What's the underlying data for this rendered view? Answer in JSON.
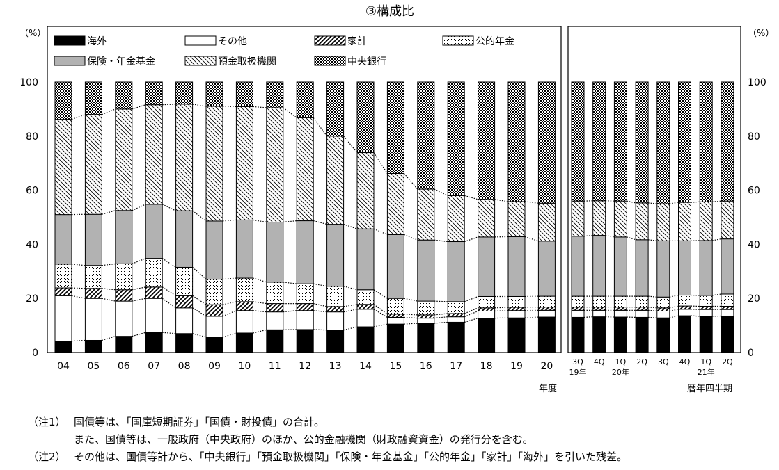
{
  "chart_data": {
    "type": "bar",
    "stacked": true,
    "title": "③構成比",
    "ylabel_left": "（%）",
    "ylabel_right": "（%）",
    "ylim": [
      0,
      100
    ],
    "yticks": [
      0,
      20,
      40,
      60,
      80,
      100
    ],
    "legend_position": "top-left",
    "groups": [
      {
        "label": "年度",
        "categories": [
          "04",
          "05",
          "06",
          "07",
          "08",
          "09",
          "10",
          "11",
          "12",
          "13",
          "14",
          "15",
          "16",
          "17",
          "18",
          "19",
          "20"
        ]
      },
      {
        "label": "暦年四半期",
        "categories": [
          "3Q",
          "4Q",
          "1Q",
          "2Q",
          "3Q",
          "4Q",
          "1Q",
          "2Q"
        ],
        "year_labels": [
          "19年",
          "20年",
          "21年"
        ]
      }
    ],
    "series": [
      {
        "name": "海外",
        "pattern": "black",
        "values": [
          4.2,
          4.5,
          6.0,
          7.4,
          7.0,
          5.7,
          7.2,
          8.4,
          8.5,
          8.3,
          9.5,
          10.5,
          10.8,
          11.2,
          12.7,
          12.8,
          13.1,
          13.0,
          13.2,
          13.1,
          13.0,
          12.8,
          13.6,
          13.4,
          13.5
        ]
      },
      {
        "name": "その他",
        "pattern": "white",
        "values": [
          16.8,
          15.5,
          13.0,
          12.6,
          9.5,
          7.7,
          8.3,
          6.6,
          7.0,
          6.7,
          6.5,
          2.5,
          1.9,
          2.0,
          2.6,
          2.7,
          2.5,
          2.6,
          2.4,
          2.5,
          2.6,
          2.5,
          2.4,
          2.5,
          2.4
        ]
      },
      {
        "name": "家計",
        "pattern": "hatch-right",
        "values": [
          2.9,
          3.7,
          4.2,
          4.2,
          4.5,
          4.3,
          3.3,
          3.1,
          2.6,
          2.0,
          1.8,
          1.2,
          1.2,
          1.2,
          1.2,
          1.2,
          1.2,
          1.2,
          1.2,
          1.2,
          1.2,
          1.2,
          1.2,
          1.2,
          1.2
        ]
      },
      {
        "name": "公的年金",
        "pattern": "fine-dots",
        "values": [
          8.8,
          8.5,
          9.6,
          10.6,
          10.5,
          9.4,
          8.7,
          7.9,
          7.3,
          7.5,
          5.4,
          5.8,
          5.1,
          4.4,
          4.2,
          4.0,
          4.0,
          4.0,
          4.0,
          4.0,
          4.0,
          4.0,
          4.0,
          4.0,
          4.5
        ]
      },
      {
        "name": "保険・年金基金",
        "pattern": "gray",
        "values": [
          18.3,
          18.9,
          19.7,
          20.0,
          20.9,
          21.5,
          21.5,
          22.2,
          23.3,
          22.9,
          22.5,
          23.6,
          22.6,
          22.2,
          22.0,
          22.1,
          20.4,
          22.2,
          22.5,
          21.9,
          20.9,
          20.8,
          20.1,
          20.3,
          20.4
        ]
      },
      {
        "name": "預金取扱機関",
        "pattern": "hatch-left",
        "values": [
          35.2,
          36.9,
          37.5,
          36.8,
          39.4,
          42.4,
          41.9,
          42.3,
          38.1,
          32.6,
          28.2,
          22.6,
          18.8,
          17.0,
          13.9,
          13.0,
          14.0,
          13.0,
          12.8,
          13.3,
          13.6,
          13.7,
          14.2,
          14.3,
          14.0
        ]
      },
      {
        "name": "中央銀行",
        "pattern": "checker",
        "values": [
          13.8,
          12.0,
          10.0,
          8.4,
          8.2,
          9.0,
          9.1,
          9.5,
          13.2,
          20.0,
          26.1,
          33.8,
          39.6,
          42.0,
          43.4,
          44.2,
          44.8,
          44.0,
          43.9,
          44.0,
          44.7,
          45.0,
          44.5,
          44.3,
          44.0
        ]
      }
    ]
  },
  "notes": {
    "n1_label": "（注1）",
    "n1_line1": "国債等は、「国庫短期証券」「国債・財投債」の合計。",
    "n1_line2": "また、国債等は、一般政府（中央政府）のほか、公的金融機関（財政融資資金）の発行分を含む。",
    "n2_label": "（注2）",
    "n2_line1": "その他は、国債等計から、「中央銀行」「預金取扱機関」「保険・年金基金」「公的年金」「家計」「海外」を引いた残差。"
  }
}
